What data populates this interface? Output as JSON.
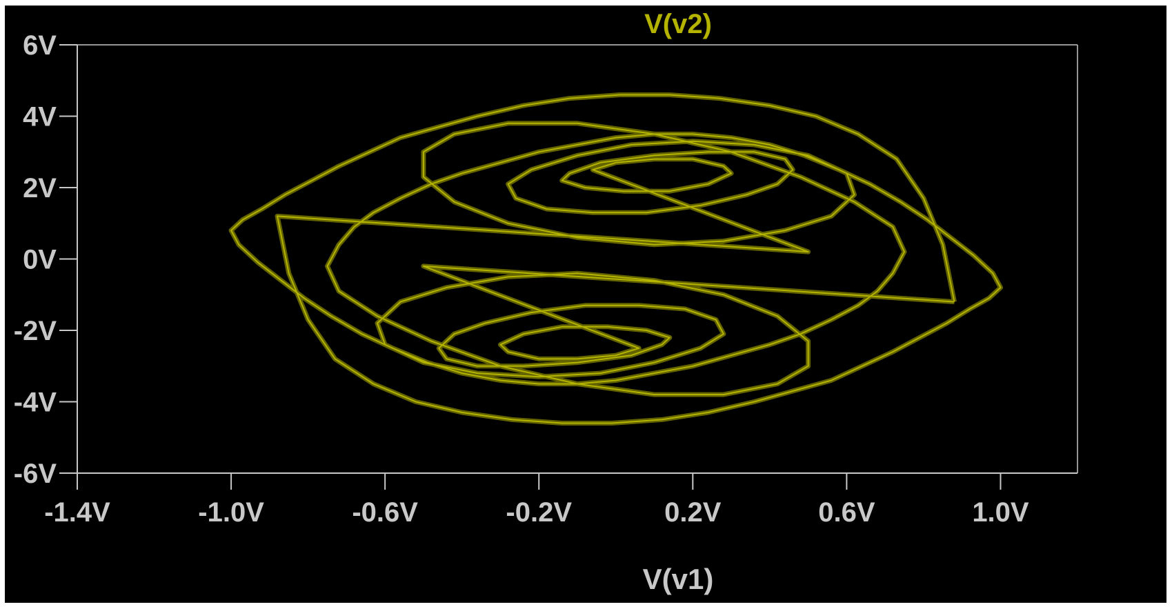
{
  "chart_data": {
    "type": "line",
    "title": "V(v2)",
    "xlabel": "V(v1)",
    "ylabel": "",
    "xlim": [
      -1.4,
      1.2
    ],
    "ylim": [
      -6,
      6
    ],
    "x_ticks": [
      -1.4,
      -1.0,
      -0.6,
      -0.2,
      0.2,
      0.6,
      1.0
    ],
    "x_tick_labels": [
      "-1.4V",
      "-1.0V",
      "-0.6V",
      "-0.2V",
      "0.2V",
      "0.6V",
      "1.0V"
    ],
    "y_ticks": [
      6,
      4,
      2,
      0,
      -2,
      -4,
      -6
    ],
    "y_tick_labels": [
      "6V",
      "4V",
      "2V",
      "0V",
      "-2V",
      "-4V",
      "-6V"
    ],
    "grid": false,
    "background": "#000000",
    "series": [
      {
        "name": "V(v2)",
        "color": "#b4b400",
        "x": [
          0.88,
          0.85,
          0.8,
          0.73,
          0.63,
          0.52,
          0.4,
          0.27,
          0.14,
          0.01,
          -0.12,
          -0.24,
          -0.36,
          -0.46,
          -0.56,
          -0.64,
          -0.72,
          -0.79,
          -0.86,
          -0.92,
          -0.97,
          -1.0,
          -0.98,
          -0.93,
          -0.87,
          -0.81,
          -0.74,
          -0.66,
          -0.58,
          -0.49,
          -0.4,
          -0.3,
          -0.2,
          -0.1,
          0.0,
          0.1,
          0.2,
          0.3,
          0.4,
          0.48,
          0.56,
          0.63,
          0.68,
          0.72,
          0.75,
          0.72,
          0.62,
          0.48,
          0.3,
          0.1,
          -0.1,
          -0.28,
          -0.42,
          -0.5,
          -0.5,
          -0.42,
          -0.28,
          -0.1,
          0.1,
          0.28,
          0.44,
          0.56,
          0.62,
          0.6,
          0.5,
          0.36,
          0.2,
          0.04,
          -0.1,
          -0.22,
          -0.28,
          -0.26,
          -0.18,
          -0.06,
          0.08,
          0.22,
          0.34,
          0.42,
          0.46,
          0.44,
          0.36,
          0.24,
          0.1,
          -0.04,
          -0.12,
          -0.14,
          -0.08,
          0.02,
          0.14,
          0.24,
          0.3,
          0.28,
          0.2,
          0.1,
          0.0,
          -0.06,
          0.5,
          -0.88,
          -0.85,
          -0.8,
          -0.73,
          -0.63,
          -0.52,
          -0.4,
          -0.27,
          -0.14,
          -0.01,
          0.12,
          0.24,
          0.36,
          0.46,
          0.56,
          0.64,
          0.72,
          0.79,
          0.86,
          0.92,
          0.97,
          1.0,
          0.98,
          0.93,
          0.87,
          0.81,
          0.74,
          0.66,
          0.58,
          0.49,
          0.4,
          0.3,
          0.2,
          0.1,
          0.0,
          -0.1,
          -0.2,
          -0.3,
          -0.4,
          -0.48,
          -0.56,
          -0.63,
          -0.68,
          -0.72,
          -0.75,
          -0.72,
          -0.62,
          -0.48,
          -0.3,
          -0.1,
          0.1,
          0.28,
          0.42,
          0.5,
          0.5,
          0.42,
          0.28,
          0.1,
          -0.1,
          -0.28,
          -0.44,
          -0.56,
          -0.62,
          -0.6,
          -0.5,
          -0.36,
          -0.2,
          -0.04,
          0.1,
          0.22,
          0.28,
          0.26,
          0.18,
          0.06,
          -0.08,
          -0.22,
          -0.34,
          -0.42,
          -0.46,
          -0.44,
          -0.36,
          -0.24,
          -0.1,
          0.04,
          0.12,
          0.14,
          0.08,
          -0.02,
          -0.14,
          -0.24,
          -0.3,
          -0.28,
          -0.2,
          -0.1,
          0.0,
          0.06,
          -0.5,
          0.88
        ],
        "y": [
          -1.2,
          0.4,
          1.7,
          2.8,
          3.5,
          4.0,
          4.3,
          4.5,
          4.6,
          4.6,
          4.5,
          4.3,
          4.0,
          3.7,
          3.4,
          3.0,
          2.6,
          2.2,
          1.8,
          1.4,
          1.1,
          0.8,
          0.4,
          -0.1,
          -0.6,
          -1.1,
          -1.6,
          -2.1,
          -2.5,
          -2.9,
          -3.2,
          -3.4,
          -3.5,
          -3.5,
          -3.4,
          -3.2,
          -3.0,
          -2.7,
          -2.4,
          -2.1,
          -1.7,
          -1.3,
          -0.9,
          -0.4,
          0.2,
          0.9,
          1.6,
          2.3,
          3.0,
          3.5,
          3.8,
          3.8,
          3.5,
          3.0,
          2.3,
          1.6,
          1.0,
          0.6,
          0.4,
          0.5,
          0.8,
          1.2,
          1.8,
          2.4,
          2.9,
          3.2,
          3.3,
          3.2,
          2.9,
          2.5,
          2.1,
          1.7,
          1.4,
          1.3,
          1.3,
          1.5,
          1.8,
          2.1,
          2.5,
          2.8,
          3.0,
          3.0,
          2.9,
          2.7,
          2.4,
          2.2,
          2.0,
          1.9,
          1.9,
          2.1,
          2.4,
          2.6,
          2.8,
          2.8,
          2.7,
          2.5,
          0.2,
          1.2,
          -0.4,
          -1.7,
          -2.8,
          -3.5,
          -4.0,
          -4.3,
          -4.5,
          -4.6,
          -4.6,
          -4.5,
          -4.3,
          -4.0,
          -3.7,
          -3.4,
          -3.0,
          -2.6,
          -2.2,
          -1.8,
          -1.4,
          -1.1,
          -0.8,
          -0.4,
          0.1,
          0.6,
          1.1,
          1.6,
          2.1,
          2.5,
          2.9,
          3.2,
          3.4,
          3.5,
          3.5,
          3.4,
          3.2,
          3.0,
          2.7,
          2.4,
          2.1,
          1.7,
          1.3,
          0.9,
          0.4,
          -0.2,
          -0.9,
          -1.6,
          -2.3,
          -3.0,
          -3.5,
          -3.8,
          -3.8,
          -3.5,
          -3.0,
          -2.3,
          -1.6,
          -1.0,
          -0.6,
          -0.4,
          -0.5,
          -0.8,
          -1.2,
          -1.8,
          -2.4,
          -2.9,
          -3.2,
          -3.3,
          -3.2,
          -2.9,
          -2.5,
          -2.1,
          -1.7,
          -1.4,
          -1.3,
          -1.3,
          -1.5,
          -1.8,
          -2.1,
          -2.5,
          -2.8,
          -3.0,
          -3.0,
          -2.9,
          -2.7,
          -2.4,
          -2.2,
          -2.0,
          -1.9,
          -1.9,
          -2.1,
          -2.4,
          -2.6,
          -2.8,
          -2.8,
          -2.7,
          -2.5,
          -0.2,
          -1.2
        ]
      }
    ]
  }
}
